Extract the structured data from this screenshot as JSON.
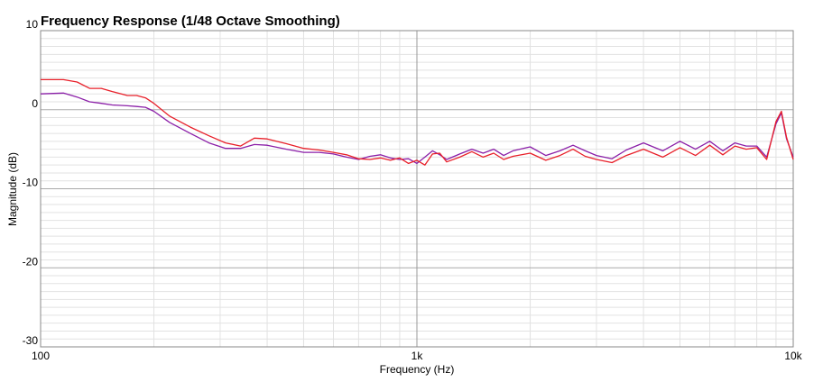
{
  "chart_data": {
    "type": "line",
    "title": "Frequency Response (1/48 Octave Smoothing)",
    "x_label": "Frequency (Hz)",
    "y_label": "Magnitude (dB)",
    "x": [
      100,
      115,
      125,
      135,
      145,
      155,
      170,
      180,
      190,
      200,
      220,
      250,
      280,
      310,
      340,
      370,
      400,
      450,
      500,
      550,
      600,
      650,
      700,
      750,
      800,
      850,
      900,
      950,
      1000,
      1050,
      1100,
      1150,
      1200,
      1300,
      1400,
      1500,
      1600,
      1700,
      1800,
      2000,
      2200,
      2400,
      2600,
      2800,
      3000,
      3300,
      3600,
      4000,
      4500,
      5000,
      5500,
      6000,
      6500,
      7000,
      7500,
      8000,
      8500,
      9000,
      9300,
      9600,
      10000
    ],
    "series": [
      {
        "color": "#8b1fa8",
        "values": [
          2.0,
          2.1,
          1.6,
          1.0,
          0.8,
          0.6,
          0.5,
          0.4,
          0.3,
          -0.2,
          -1.6,
          -3.0,
          -4.2,
          -4.9,
          -4.9,
          -4.4,
          -4.5,
          -5.0,
          -5.4,
          -5.4,
          -5.6,
          -6.0,
          -6.3,
          -5.9,
          -5.7,
          -6.1,
          -6.3,
          -6.2,
          -6.8,
          -6.0,
          -5.2,
          -5.7,
          -6.3,
          -5.6,
          -5.0,
          -5.5,
          -5.0,
          -5.8,
          -5.2,
          -4.7,
          -5.8,
          -5.2,
          -4.5,
          -5.2,
          -5.8,
          -6.2,
          -5.1,
          -4.2,
          -5.2,
          -4.0,
          -5.0,
          -4.0,
          -5.2,
          -4.2,
          -4.6,
          -4.6,
          -6.0,
          -1.8,
          -0.4,
          -3.7,
          -6.0
        ]
      },
      {
        "color": "#e8202a",
        "values": [
          3.8,
          3.8,
          3.5,
          2.7,
          2.7,
          2.3,
          1.8,
          1.8,
          1.5,
          0.8,
          -0.8,
          -2.2,
          -3.3,
          -4.2,
          -4.6,
          -3.6,
          -3.7,
          -4.3,
          -4.9,
          -5.1,
          -5.4,
          -5.7,
          -6.2,
          -6.3,
          -6.1,
          -6.4,
          -6.1,
          -6.8,
          -6.4,
          -7.0,
          -5.6,
          -5.5,
          -6.6,
          -6.0,
          -5.3,
          -6.0,
          -5.5,
          -6.3,
          -5.9,
          -5.5,
          -6.4,
          -5.8,
          -5.0,
          -5.9,
          -6.3,
          -6.7,
          -5.8,
          -5.0,
          -6.0,
          -4.8,
          -5.8,
          -4.5,
          -5.7,
          -4.6,
          -5.0,
          -4.8,
          -6.3,
          -1.5,
          -0.2,
          -3.5,
          -6.3
        ]
      }
    ],
    "xscale": "log",
    "xlim": [
      100,
      10000
    ],
    "xticks": [
      100,
      {
        "value": 1000,
        "label": "1k"
      },
      {
        "value": 10000,
        "label": "10k"
      }
    ],
    "ylim": [
      -30,
      10
    ],
    "yticks": [
      -30,
      -20,
      -10,
      0,
      10
    ],
    "grid": true
  }
}
